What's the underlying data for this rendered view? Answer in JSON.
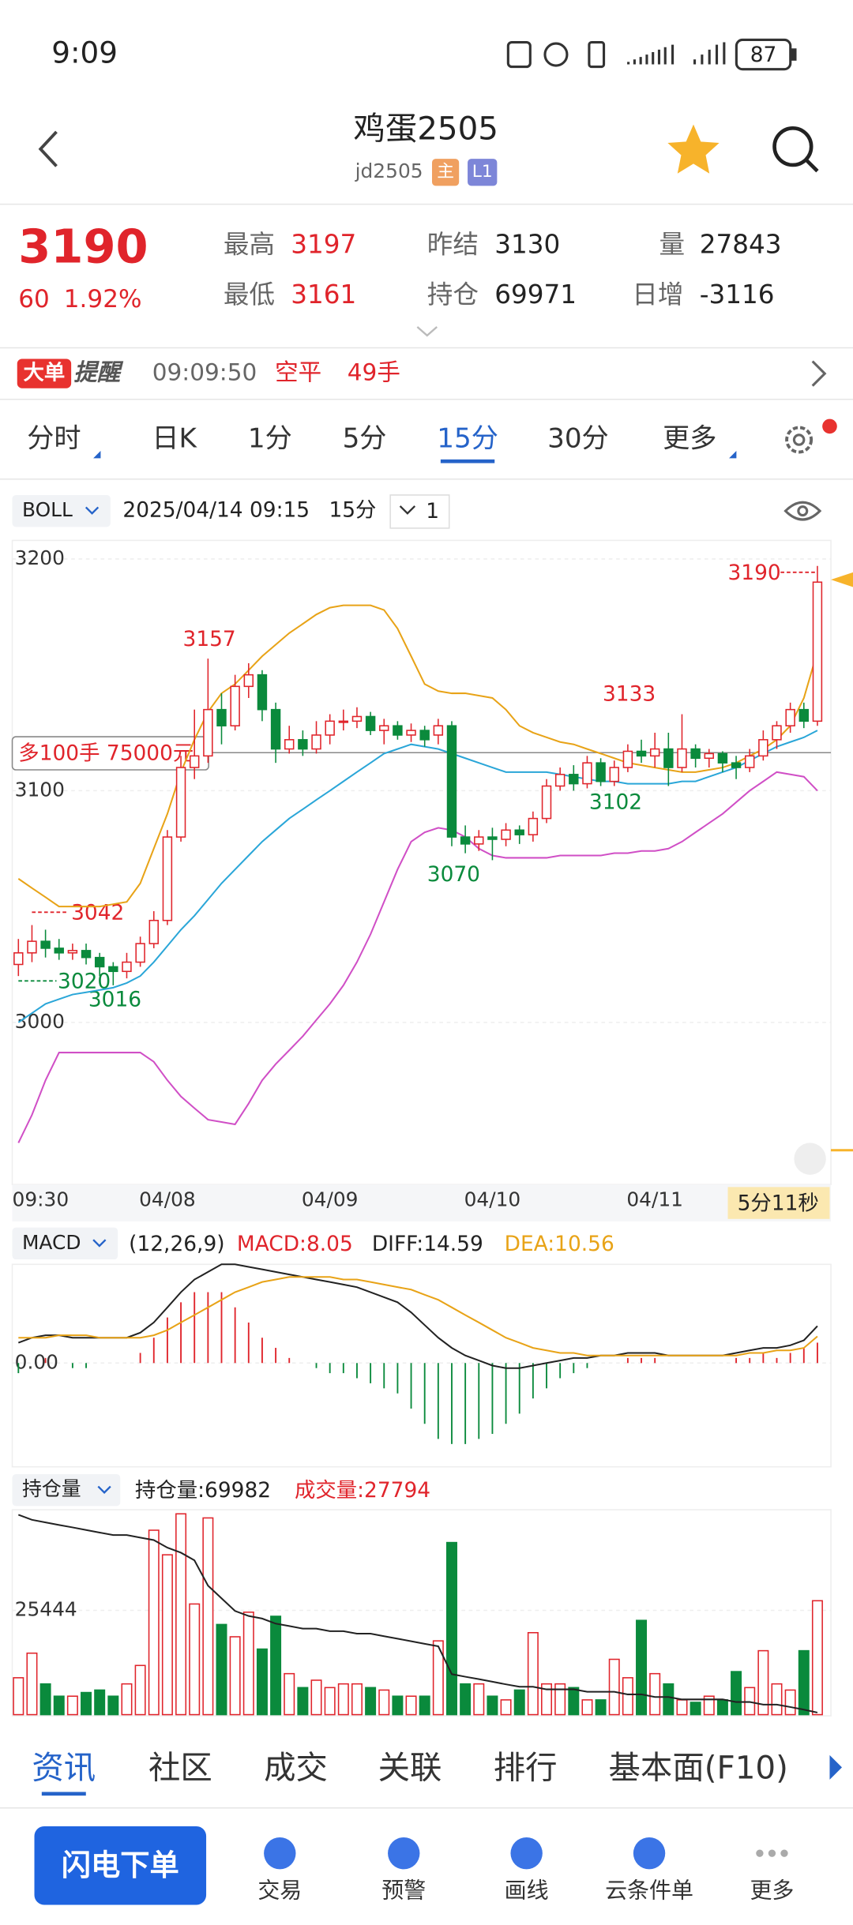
{
  "status_bar": {
    "time": "9:09",
    "battery": "87"
  },
  "header": {
    "title": "鸡蛋2505",
    "code": "jd2505",
    "badges": [
      "主",
      "L1"
    ]
  },
  "quote": {
    "price": "3190",
    "change": "60",
    "change_pct": "1.92%",
    "fields": [
      [
        "最高",
        "3197"
      ],
      [
        "最低",
        "3161"
      ],
      [
        "昨结",
        "3130"
      ],
      [
        "持仓",
        "69971"
      ],
      [
        "量",
        "27843"
      ],
      [
        "日增",
        "-3116"
      ]
    ]
  },
  "alert": {
    "badge": "大单",
    "label": "提醒",
    "time": "09:09:50",
    "action": "空平",
    "qty": "49手"
  },
  "tabs": {
    "items": [
      "分时",
      "日K",
      "1分",
      "5分",
      "15分",
      "30分",
      "更多"
    ],
    "active": 4
  },
  "toolbar": {
    "indicator": "BOLL",
    "datetime": "2025/04/14 09:15",
    "period": "15分",
    "count": "1",
    "countdown": "5分11秒",
    "order": "多100手  75000元"
  },
  "chart_data": [
    {
      "type": "candlestick",
      "ylim": [
        2930,
        3208
      ],
      "yticks": [
        3000,
        3100,
        3200
      ],
      "grid": true,
      "annotations": [
        3190,
        3157,
        3042,
        3020,
        3016,
        3070,
        3133,
        3102
      ],
      "categories": [
        "09:30",
        null,
        null,
        null,
        null,
        null,
        null,
        null,
        null,
        null,
        null,
        "04/08",
        null,
        null,
        null,
        null,
        null,
        null,
        null,
        null,
        null,
        null,
        null,
        "04/09",
        null,
        null,
        null,
        null,
        null,
        null,
        null,
        null,
        null,
        null,
        null,
        "04/10",
        null,
        null,
        null,
        null,
        null,
        null,
        null,
        null,
        null,
        null,
        null,
        "04/11",
        null,
        null,
        null,
        null,
        null,
        null,
        null,
        null,
        null,
        null,
        null,
        null
      ],
      "candles": [
        [
          3025,
          3030,
          3036,
          3020
        ],
        [
          3030,
          3035,
          3042,
          3026
        ],
        [
          3035,
          3032,
          3040,
          3028
        ],
        [
          3032,
          3030,
          3036,
          3027
        ],
        [
          3030,
          3031,
          3034,
          3027
        ],
        [
          3031,
          3028,
          3034,
          3025
        ],
        [
          3028,
          3024,
          3030,
          3020
        ],
        [
          3024,
          3022,
          3026,
          3016
        ],
        [
          3022,
          3026,
          3030,
          3019
        ],
        [
          3026,
          3034,
          3037,
          3024
        ],
        [
          3034,
          3044,
          3048,
          3032
        ],
        [
          3044,
          3080,
          3083,
          3042
        ],
        [
          3080,
          3110,
          3115,
          3078
        ],
        [
          3110,
          3115,
          3135,
          3105
        ],
        [
          3115,
          3135,
          3157,
          3112
        ],
        [
          3135,
          3128,
          3142,
          3120
        ],
        [
          3128,
          3145,
          3150,
          3126
        ],
        [
          3145,
          3150,
          3155,
          3140
        ],
        [
          3150,
          3135,
          3152,
          3130
        ],
        [
          3135,
          3118,
          3138,
          3112
        ],
        [
          3118,
          3122,
          3128,
          3116
        ],
        [
          3122,
          3118,
          3126,
          3115
        ],
        [
          3118,
          3124,
          3130,
          3116
        ],
        [
          3124,
          3130,
          3133,
          3120
        ],
        [
          3130,
          3130,
          3135,
          3126
        ],
        [
          3130,
          3132,
          3136,
          3127
        ],
        [
          3132,
          3126,
          3134,
          3124
        ],
        [
          3126,
          3128,
          3131,
          3120
        ],
        [
          3128,
          3124,
          3130,
          3122
        ],
        [
          3124,
          3126,
          3129,
          3121
        ],
        [
          3126,
          3122,
          3128,
          3119
        ],
        [
          3124,
          3128,
          3131,
          3120
        ],
        [
          3128,
          3080,
          3130,
          3076
        ],
        [
          3080,
          3077,
          3085,
          3073
        ],
        [
          3077,
          3080,
          3083,
          3074
        ],
        [
          3080,
          3079,
          3084,
          3070
        ],
        [
          3079,
          3083,
          3086,
          3076
        ],
        [
          3083,
          3081,
          3085,
          3077
        ],
        [
          3081,
          3088,
          3091,
          3078
        ],
        [
          3088,
          3102,
          3105,
          3086
        ],
        [
          3102,
          3107,
          3110,
          3100
        ],
        [
          3107,
          3103,
          3111,
          3100
        ],
        [
          3103,
          3112,
          3115,
          3101
        ],
        [
          3112,
          3104,
          3114,
          3102
        ],
        [
          3104,
          3110,
          3113,
          3102
        ],
        [
          3110,
          3117,
          3120,
          3108
        ],
        [
          3117,
          3115,
          3122,
          3112
        ],
        [
          3115,
          3118,
          3125,
          3110
        ],
        [
          3118,
          3110,
          3125,
          3102
        ],
        [
          3110,
          3118,
          3133,
          3108
        ],
        [
          3118,
          3114,
          3120,
          3110
        ],
        [
          3114,
          3116,
          3118,
          3110
        ],
        [
          3116,
          3112,
          3117,
          3108
        ],
        [
          3112,
          3110,
          3115,
          3105
        ],
        [
          3110,
          3115,
          3118,
          3108
        ],
        [
          3115,
          3122,
          3126,
          3113
        ],
        [
          3122,
          3128,
          3130,
          3118
        ],
        [
          3128,
          3135,
          3138,
          3125
        ],
        [
          3135,
          3130,
          3138,
          3127
        ],
        [
          3130,
          3190,
          3197,
          3128
        ]
      ],
      "series": [
        {
          "color": "#e8a317",
          "values": [
            3062,
            3058,
            3054,
            3050,
            3050,
            3050,
            3050,
            3051,
            3052,
            3060,
            3075,
            3090,
            3108,
            3122,
            3134,
            3142,
            3146,
            3152,
            3158,
            3163,
            3168,
            3172,
            3176,
            3179,
            3180,
            3180,
            3180,
            3178,
            3170,
            3158,
            3146,
            3143,
            3142,
            3142,
            3141,
            3140,
            3135,
            3128,
            3125,
            3123,
            3121,
            3120,
            3118,
            3116,
            3114,
            3112,
            3111,
            3110,
            3109,
            3108,
            3108,
            3109,
            3110,
            3112,
            3115,
            3118,
            3122,
            3128,
            3140,
            3160
          ]
        },
        {
          "color": "#2aa6d8",
          "values": [
            3000,
            3004,
            3008,
            3010,
            3012,
            3013,
            3014,
            3015,
            3017,
            3020,
            3026,
            3033,
            3040,
            3046,
            3053,
            3060,
            3066,
            3072,
            3078,
            3083,
            3088,
            3092,
            3096,
            3100,
            3104,
            3108,
            3112,
            3116,
            3118,
            3120,
            3119,
            3118,
            3116,
            3114,
            3112,
            3110,
            3108,
            3108,
            3108,
            3108,
            3107,
            3106,
            3105,
            3104,
            3104,
            3103,
            3103,
            3103,
            3103,
            3104,
            3104,
            3106,
            3108,
            3110,
            3113,
            3116,
            3119,
            3121,
            3123,
            3126
          ]
        },
        {
          "color": "#d04fc6",
          "values": [
            2948,
            2960,
            2975,
            2987,
            2987,
            2987,
            2987,
            2987,
            2987,
            2987,
            2983,
            2975,
            2968,
            2963,
            2958,
            2957,
            2956,
            2965,
            2975,
            2982,
            2988,
            2994,
            3001,
            3008,
            3016,
            3026,
            3038,
            3052,
            3066,
            3078,
            3082,
            3084,
            3083,
            3080,
            3075,
            3072,
            3071,
            3071,
            3071,
            3071,
            3072,
            3072,
            3072,
            3072,
            3073,
            3073,
            3074,
            3074,
            3075,
            3078,
            3082,
            3086,
            3090,
            3095,
            3100,
            3104,
            3108,
            3107,
            3106,
            3100
          ]
        }
      ]
    },
    {
      "type": "macd",
      "title": "MACD",
      "params": "(12,26,9)",
      "legend": [
        "MACD:8.05",
        "DIFF:14.59",
        "DEA:10.56"
      ],
      "ylim": [
        -41,
        39
      ],
      "yticks": [
        {
          "value": 0,
          "label": "0.00"
        }
      ],
      "histogram": [
        -4,
        0,
        2,
        0,
        -2,
        -2,
        0,
        0,
        0,
        4,
        10,
        18,
        24,
        28,
        28,
        28,
        22,
        16,
        10,
        6,
        2,
        0,
        -2,
        -4,
        -4,
        -6,
        -8,
        -10,
        -12,
        -18,
        -24,
        -30,
        -32,
        -32,
        -30,
        -28,
        -24,
        -20,
        -14,
        -10,
        -6,
        -4,
        -2,
        0,
        0,
        2,
        2,
        2,
        0,
        0,
        0,
        0,
        0,
        2,
        2,
        4,
        2,
        4,
        6,
        8.05
      ],
      "series": [
        {
          "color": "#222222",
          "values": [
            8,
            10,
            11,
            11,
            10,
            10,
            10,
            10,
            10,
            12,
            16,
            22,
            28,
            33,
            36,
            39,
            39,
            38,
            37,
            36,
            35,
            34,
            33,
            32,
            31,
            30,
            28,
            26,
            24,
            20,
            15,
            10,
            6,
            3,
            1,
            -1,
            -2,
            -2,
            -1,
            0,
            1,
            2,
            2,
            3,
            3,
            4,
            4,
            4,
            3,
            3,
            3,
            3,
            3,
            4,
            5,
            6,
            6,
            7,
            9,
            14.59
          ]
        },
        {
          "color": "#e8a317",
          "values": [
            10,
            10,
            10,
            11,
            11,
            11,
            10,
            10,
            10,
            10,
            11,
            13,
            16,
            19,
            22,
            25,
            28,
            30,
            32,
            33,
            34,
            34,
            34,
            34,
            33,
            33,
            32,
            31,
            30,
            29,
            27,
            25,
            22,
            19,
            16,
            13,
            10,
            8,
            6,
            5,
            4,
            4,
            3,
            3,
            3,
            3,
            3,
            3,
            3,
            3,
            3,
            3,
            3,
            3,
            4,
            4,
            5,
            5,
            6,
            10.56
          ]
        }
      ]
    },
    {
      "type": "bar",
      "title": "持仓量",
      "legend": [
        "持仓量:69982",
        "成交量:27794"
      ],
      "ylim": [
        0,
        50000
      ],
      "yticks": [
        25444
      ],
      "y2lim": [
        69900,
        78000
      ],
      "values": [
        9000,
        15000,
        7500,
        4500,
        4500,
        5400,
        6000,
        4500,
        7500,
        12000,
        45000,
        39000,
        49000,
        27000,
        48000,
        22000,
        19000,
        25000,
        16000,
        24000,
        10000,
        6600,
        8400,
        6600,
        7500,
        7500,
        6600,
        6000,
        4500,
        4500,
        4500,
        18000,
        42000,
        7500,
        7500,
        4500,
        3600,
        6000,
        20000,
        7500,
        7500,
        6600,
        3600,
        3600,
        13500,
        9000,
        23000,
        10000,
        7500,
        3600,
        3000,
        4500,
        3600,
        10500,
        6600,
        15600,
        7500,
        6000,
        15600,
        27794
      ],
      "series": [
        {
          "axis": "y2",
          "color": "#222222",
          "values": [
            77800,
            77600,
            77500,
            77400,
            77300,
            77200,
            77100,
            77000,
            77000,
            76900,
            76800,
            76500,
            76300,
            76000,
            75000,
            74500,
            74000,
            73800,
            73700,
            73500,
            73400,
            73300,
            73300,
            73200,
            73200,
            73100,
            73100,
            73000,
            72900,
            72800,
            72700,
            72600,
            71500,
            71400,
            71300,
            71200,
            71100,
            71000,
            71000,
            70900,
            70900,
            70900,
            70800,
            70800,
            70800,
            70700,
            70700,
            70600,
            70600,
            70500,
            70500,
            70500,
            70500,
            70400,
            70400,
            70300,
            70300,
            70200,
            70100,
            69982
          ]
        }
      ]
    }
  ],
  "bottom_tabs": {
    "items": [
      "资讯",
      "社区",
      "成交",
      "关联",
      "排行",
      "基本面(F10)"
    ],
    "active": 0
  },
  "bottom_nav": {
    "primary": "闪电下单",
    "items": [
      "交易",
      "预警",
      "画线",
      "云条件单",
      "更多"
    ]
  }
}
